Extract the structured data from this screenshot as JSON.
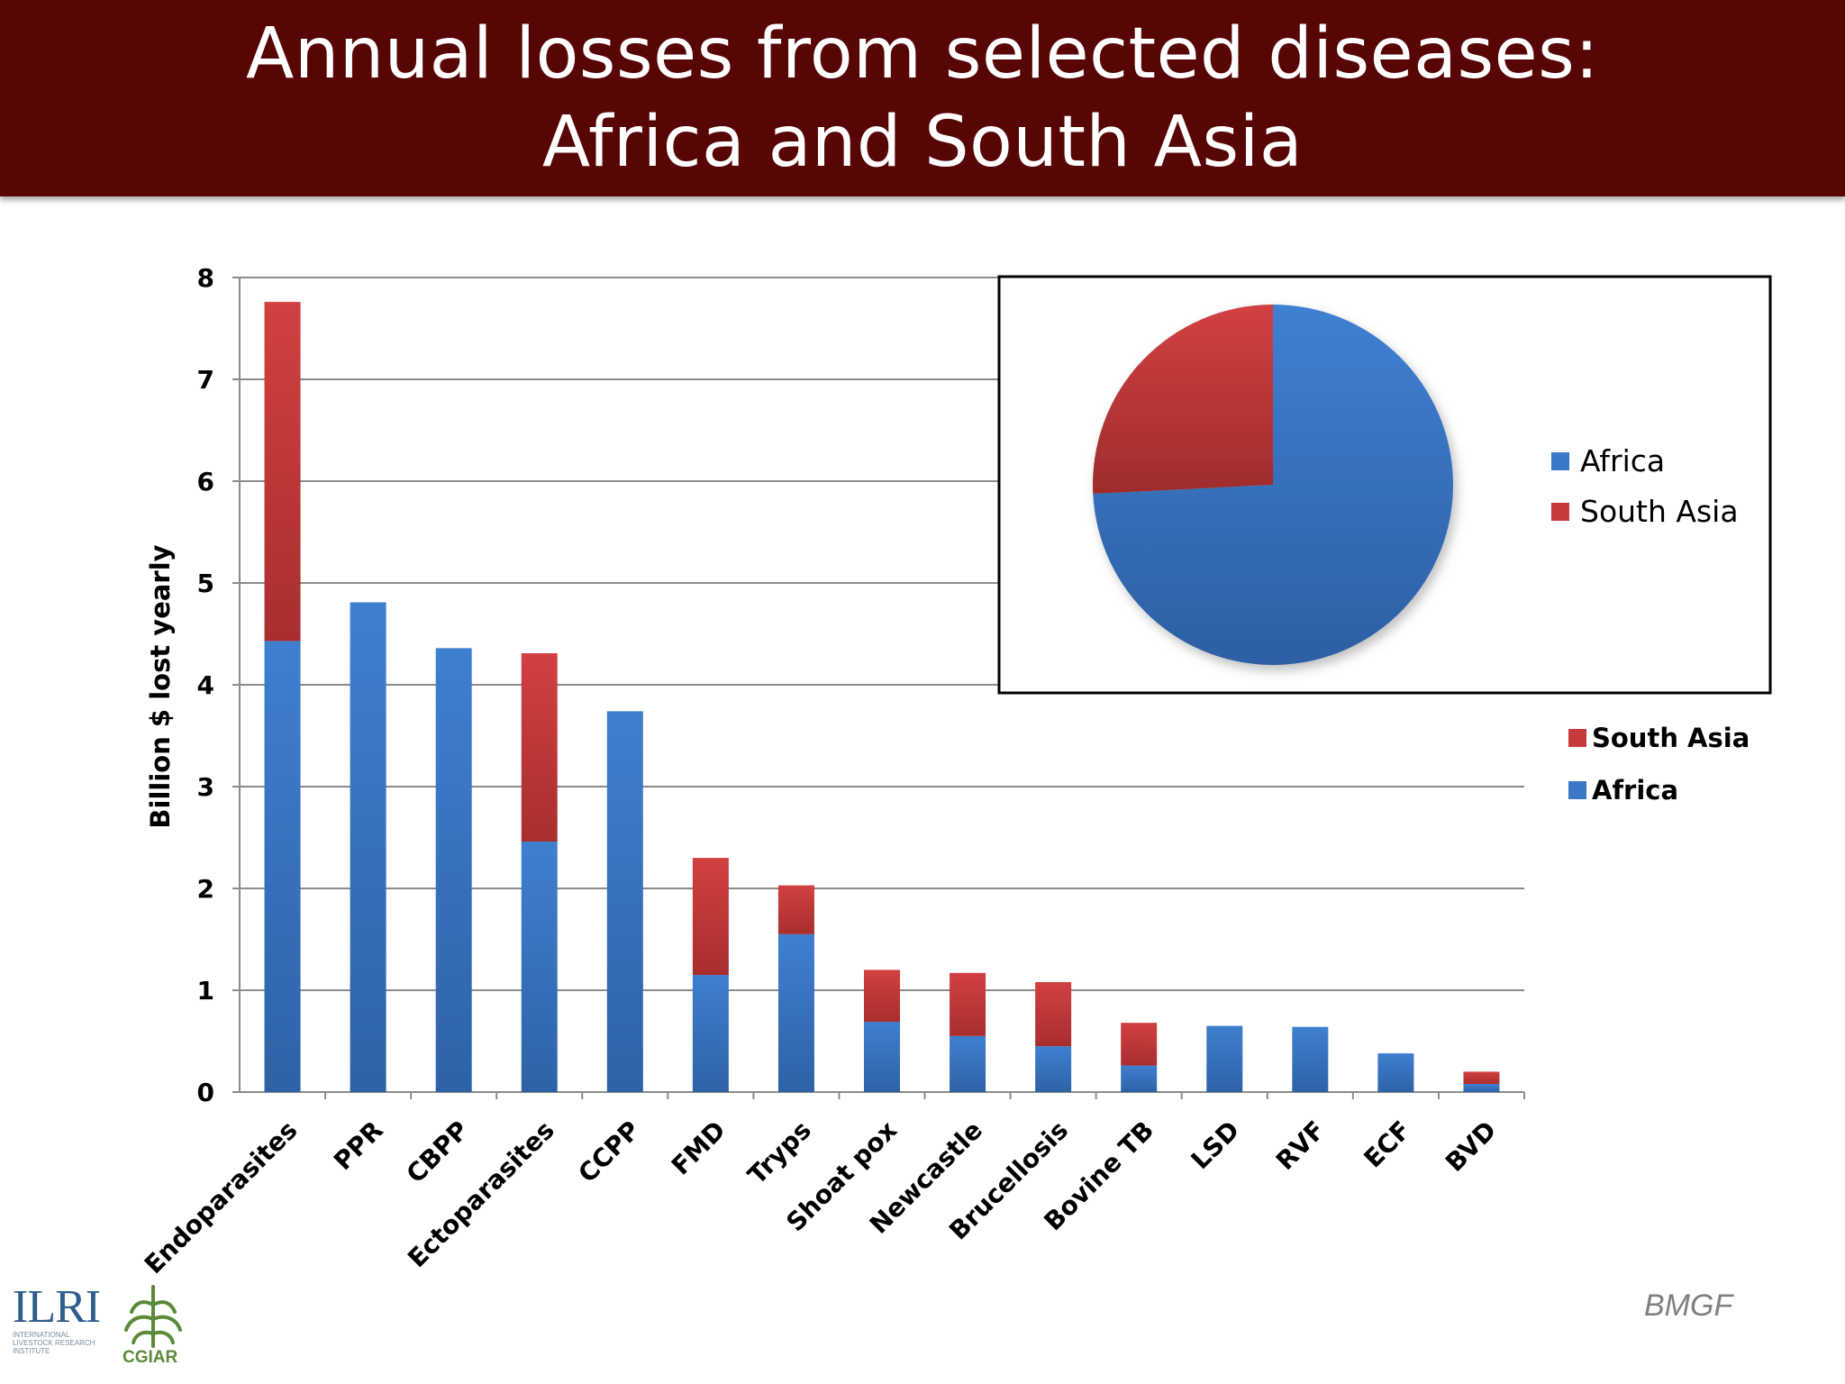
{
  "header": {
    "title_line1": "Annual losses from selected diseases:",
    "title_line2": "Africa and South Asia"
  },
  "credit": "BMGF",
  "logos": {
    "ilri": "ILRI",
    "ilri_subtitle": "INTERNATIONAL LIVESTOCK RESEARCH INSTITUTE",
    "cgiar": "CGIAR"
  },
  "colors": {
    "africa": "#3a78c8",
    "south_asia": "#c73a3a",
    "title_bg": "#570505"
  },
  "chart_data": [
    {
      "type": "bar",
      "stacked": true,
      "categories": [
        "Endoparasites",
        "PPR",
        "CBPP",
        "Ectoparasites",
        "CCPP",
        "FMD",
        "Tryps",
        "Shoat pox",
        "Newcastle",
        "Brucellosis",
        "Bovine TB",
        "LSD",
        "RVF",
        "ECF",
        "BVD"
      ],
      "series": [
        {
          "name": "Africa",
          "values": [
            4.43,
            4.81,
            4.36,
            2.46,
            3.74,
            1.15,
            1.55,
            0.69,
            0.55,
            0.45,
            0.26,
            0.65,
            0.64,
            0.38,
            0.08
          ]
        },
        {
          "name": "South Asia",
          "values": [
            3.33,
            0,
            0,
            1.85,
            0,
            1.15,
            0.48,
            0.51,
            0.62,
            0.63,
            0.42,
            0,
            0,
            0,
            0.12
          ]
        }
      ],
      "ylabel": "Billion $ lost yearly",
      "xlabel": "",
      "ylim": [
        0,
        8
      ],
      "yticks": [
        "0",
        "1",
        "2",
        "3",
        "4",
        "5",
        "6",
        "7",
        "8"
      ],
      "grid": true,
      "legend": {
        "position": "right",
        "entries": [
          "South Asia",
          "Africa"
        ]
      }
    },
    {
      "type": "pie",
      "labels": [
        "Africa",
        "South Asia"
      ],
      "values": [
        74.2,
        25.8
      ],
      "legend": {
        "position": "right",
        "entries": [
          "Africa",
          "South Asia"
        ]
      }
    }
  ]
}
